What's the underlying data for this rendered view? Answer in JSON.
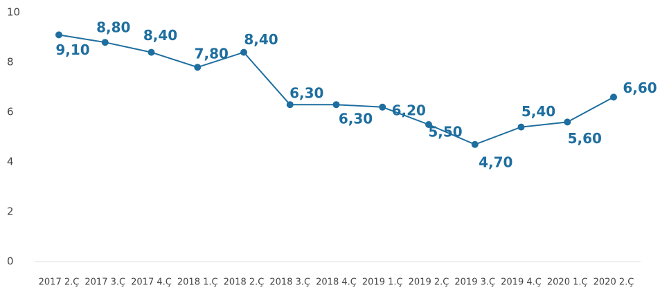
{
  "chart_data": {
    "type": "line",
    "categories": [
      "2017 2.Ç",
      "2017 3.Ç",
      "2017 4.Ç",
      "2018 1.Ç",
      "2018 2.Ç",
      "2018 3.Ç",
      "2018 4.Ç",
      "2019 1.Ç",
      "2019 2.Ç",
      "2019 3.Ç",
      "2019 4.Ç",
      "2020 1.Ç",
      "2020 2.Ç"
    ],
    "series": [
      {
        "color": "#1e6e9f",
        "values": [
          9.1,
          8.8,
          8.4,
          7.8,
          8.4,
          6.3,
          6.3,
          6.2,
          5.5,
          4.7,
          5.4,
          5.6,
          6.6
        ],
        "value_labels": [
          "9,10",
          "8,80",
          "8,40",
          "7,80",
          "8,40",
          "6,30",
          "6,30",
          "6,20",
          "5,50",
          "4,70",
          "5,40",
          "5,60",
          "6,60"
        ]
      }
    ],
    "ylim": [
      0,
      10
    ],
    "yticks": [
      0,
      2,
      4,
      6,
      8,
      10
    ],
    "grid": false
  }
}
